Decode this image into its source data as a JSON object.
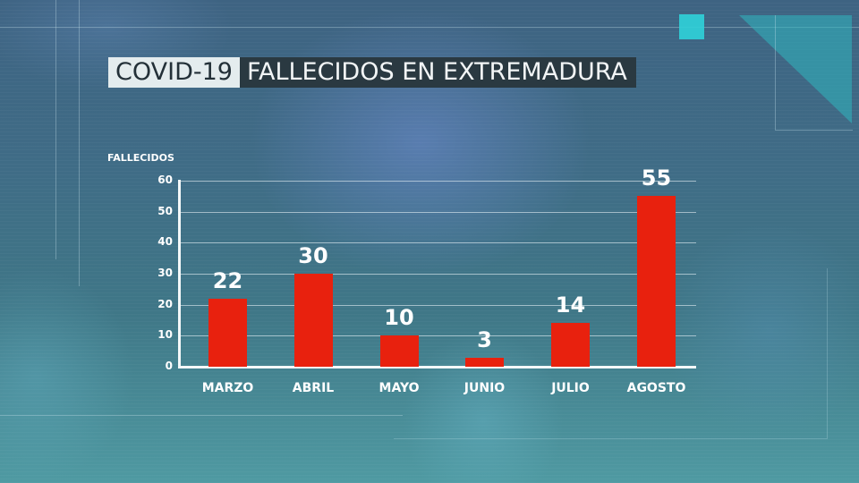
{
  "title": {
    "prefix": "COVID-19",
    "main": "FALLECIDOS EN EXTREMADURA"
  },
  "colors": {
    "bar": "#e8210e",
    "title_light_bg": "#e4ecee",
    "title_dark_bg": "#2a3941",
    "accent_cyan": "#2fd1d9"
  },
  "chart_data": {
    "type": "bar",
    "title": "COVID-19 FALLECIDOS EN EXTREMADURA",
    "xlabel": "",
    "ylabel": "FALLECIDOS",
    "categories": [
      "MARZO",
      "ABRIL",
      "MAYO",
      "JUNIO",
      "JULIO",
      "AGOSTO"
    ],
    "values": [
      22,
      30,
      10,
      3,
      14,
      55
    ],
    "value_labels": [
      "22",
      "30",
      "10",
      "3",
      "14",
      "55"
    ],
    "ylim": [
      0,
      60
    ],
    "yticks": [
      "0",
      "10",
      "20",
      "30",
      "40",
      "50",
      "60"
    ],
    "grid": true,
    "legend": "none"
  }
}
